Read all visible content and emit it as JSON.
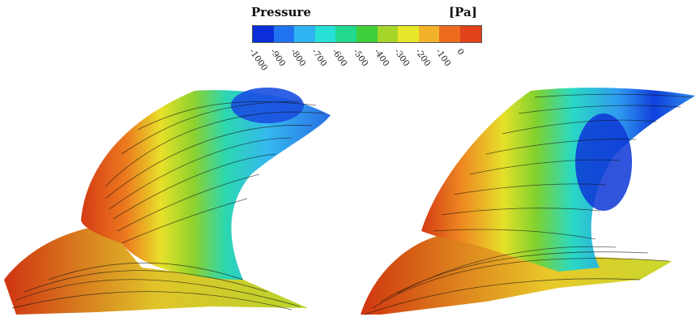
{
  "legend": {
    "title": "Pressure",
    "unit": "[Pa]",
    "ticks": [
      "-1000",
      "-900",
      "-800",
      "-700",
      "-600",
      "-500",
      "-400",
      "-300",
      "-200",
      "-100",
      "0"
    ],
    "colors": [
      "#0a2fd8",
      "#1f73f0",
      "#2fb4f2",
      "#27e0d6",
      "#22d88e",
      "#3fcf3a",
      "#a6d62a",
      "#e8e62a",
      "#f2b32a",
      "#ee6a1f",
      "#e0421a"
    ]
  }
}
